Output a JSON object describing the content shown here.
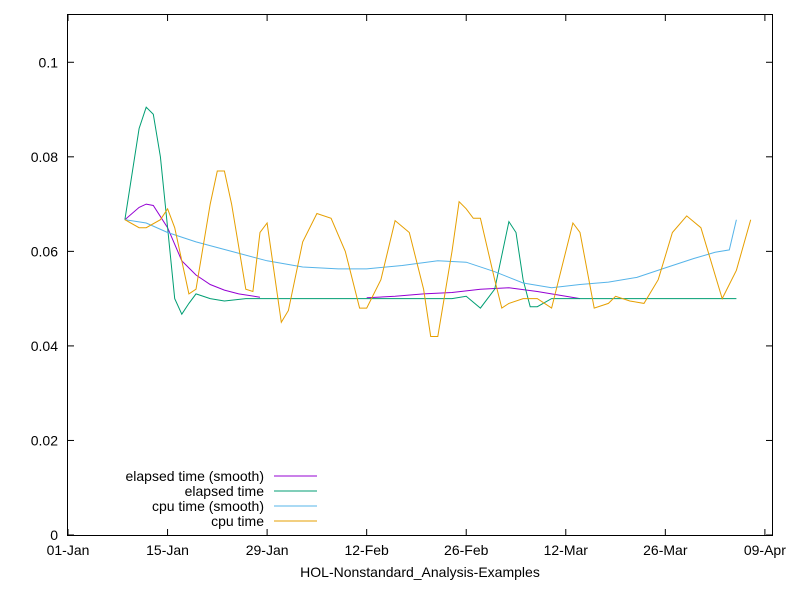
{
  "chart_data": {
    "type": "line",
    "title": "",
    "xlabel": "HOL-Nonstandard_Analysis-Examples",
    "ylabel": "",
    "x_range": [
      "2000-01-01",
      "2000-04-09"
    ],
    "ylim": [
      0,
      0.11
    ],
    "x_ticks": [
      "01-Jan",
      "15-Jan",
      "29-Jan",
      "12-Feb",
      "26-Feb",
      "12-Mar",
      "26-Mar",
      "09-Apr"
    ],
    "y_ticks": [
      "0",
      "0.02",
      "0.04",
      "0.06",
      "0.08",
      "0.1"
    ],
    "y_tick_values": [
      0,
      0.02,
      0.04,
      0.06,
      0.08,
      0.1
    ],
    "grid": false,
    "legend_position": "bottom-left",
    "series": [
      {
        "name": "elapsed time (smooth)",
        "color": "#9400d3",
        "points": [
          [
            "2000-01-09",
            0.0667
          ],
          [
            "2000-01-11",
            0.0693
          ],
          [
            "2000-01-12",
            0.07
          ],
          [
            "2000-01-13",
            0.0697
          ],
          [
            "2000-01-15",
            0.065
          ],
          [
            "2000-01-17",
            0.058
          ],
          [
            "2000-01-19",
            0.055
          ],
          [
            "2000-01-21",
            0.053
          ],
          [
            "2000-01-23",
            0.0518
          ],
          [
            "2000-01-25",
            0.051
          ],
          [
            "2000-01-28",
            0.0503
          ],
          null,
          [
            "2000-02-12",
            0.0502
          ],
          [
            "2000-02-16",
            0.0505
          ],
          [
            "2000-02-20",
            0.051
          ],
          [
            "2000-02-24",
            0.0513
          ],
          [
            "2000-02-28",
            0.052
          ],
          [
            "2000-03-03",
            0.0523
          ],
          [
            "2000-03-07",
            0.0515
          ],
          [
            "2000-03-11",
            0.0505
          ],
          [
            "2000-03-13",
            0.05
          ]
        ]
      },
      {
        "name": "elapsed time",
        "color": "#009e73",
        "points": [
          [
            "2000-01-09",
            0.0667
          ],
          [
            "2000-01-11",
            0.086
          ],
          [
            "2000-01-12",
            0.0905
          ],
          [
            "2000-01-13",
            0.089
          ],
          [
            "2000-01-14",
            0.08
          ],
          [
            "2000-01-15",
            0.065
          ],
          [
            "2000-01-16",
            0.05
          ],
          [
            "2000-01-17",
            0.0467
          ],
          [
            "2000-01-18",
            0.049
          ],
          [
            "2000-01-19",
            0.051
          ],
          [
            "2000-01-21",
            0.05
          ],
          [
            "2000-01-23",
            0.0495
          ],
          [
            "2000-01-26",
            0.05
          ],
          [
            "2000-02-12",
            0.05
          ],
          [
            "2000-02-24",
            0.05
          ],
          [
            "2000-02-26",
            0.0505
          ],
          [
            "2000-02-28",
            0.048
          ],
          [
            "2000-03-01",
            0.052
          ],
          [
            "2000-03-03",
            0.0663
          ],
          [
            "2000-03-04",
            0.064
          ],
          [
            "2000-03-05",
            0.054
          ],
          [
            "2000-03-06",
            0.0483
          ],
          [
            "2000-03-07",
            0.0483
          ],
          [
            "2000-03-09",
            0.05
          ],
          [
            "2000-04-04",
            0.05
          ]
        ]
      },
      {
        "name": "cpu time (smooth)",
        "color": "#56b4e9",
        "points": [
          [
            "2000-01-09",
            0.0667
          ],
          [
            "2000-01-12",
            0.066
          ],
          [
            "2000-01-15",
            0.064
          ],
          [
            "2000-01-19",
            0.062
          ],
          [
            "2000-01-24",
            0.06
          ],
          [
            "2000-01-29",
            0.058
          ],
          [
            "2000-02-03",
            0.0567
          ],
          [
            "2000-02-08",
            0.0563
          ],
          [
            "2000-02-12",
            0.0563
          ],
          [
            "2000-02-17",
            0.057
          ],
          [
            "2000-02-22",
            0.058
          ],
          [
            "2000-02-26",
            0.0577
          ],
          [
            "2000-03-01",
            0.0557
          ],
          [
            "2000-03-05",
            0.0533
          ],
          [
            "2000-03-09",
            0.0523
          ],
          [
            "2000-03-13",
            0.053
          ],
          [
            "2000-03-17",
            0.0535
          ],
          [
            "2000-03-21",
            0.0545
          ],
          [
            "2000-03-25",
            0.0565
          ],
          [
            "2000-03-29",
            0.0585
          ],
          [
            "2000-04-01",
            0.0598
          ],
          [
            "2000-04-03",
            0.0603
          ],
          [
            "2000-04-04",
            0.0667
          ]
        ]
      },
      {
        "name": "cpu time",
        "color": "#e69f00",
        "points": [
          [
            "2000-01-09",
            0.0667
          ],
          [
            "2000-01-11",
            0.065
          ],
          [
            "2000-01-12",
            0.065
          ],
          [
            "2000-01-14",
            0.0667
          ],
          [
            "2000-01-15",
            0.069
          ],
          [
            "2000-01-16",
            0.065
          ],
          [
            "2000-01-18",
            0.051
          ],
          [
            "2000-01-19",
            0.052
          ],
          [
            "2000-01-21",
            0.07
          ],
          [
            "2000-01-22",
            0.077
          ],
          [
            "2000-01-23",
            0.077
          ],
          [
            "2000-01-24",
            0.07
          ],
          [
            "2000-01-26",
            0.052
          ],
          [
            "2000-01-27",
            0.0515
          ],
          [
            "2000-01-28",
            0.064
          ],
          [
            "2000-01-29",
            0.066
          ],
          [
            "2000-01-31",
            0.045
          ],
          [
            "2000-02-01",
            0.0475
          ],
          [
            "2000-02-03",
            0.062
          ],
          [
            "2000-02-05",
            0.068
          ],
          [
            "2000-02-07",
            0.067
          ],
          [
            "2000-02-09",
            0.06
          ],
          [
            "2000-02-11",
            0.048
          ],
          [
            "2000-02-12",
            0.048
          ],
          [
            "2000-02-14",
            0.054
          ],
          [
            "2000-02-16",
            0.0665
          ],
          [
            "2000-02-18",
            0.064
          ],
          [
            "2000-02-20",
            0.052
          ],
          [
            "2000-02-21",
            0.042
          ],
          [
            "2000-02-22",
            0.042
          ],
          [
            "2000-02-24",
            0.06
          ],
          [
            "2000-02-25",
            0.0705
          ],
          [
            "2000-02-26",
            0.069
          ],
          [
            "2000-02-27",
            0.067
          ],
          [
            "2000-02-28",
            0.067
          ],
          [
            "2000-03-01",
            0.054
          ],
          [
            "2000-03-02",
            0.048
          ],
          [
            "2000-03-03",
            0.049
          ],
          [
            "2000-03-05",
            0.05
          ],
          [
            "2000-03-07",
            0.05
          ],
          [
            "2000-03-09",
            0.048
          ],
          [
            "2000-03-12",
            0.066
          ],
          [
            "2000-03-13",
            0.064
          ],
          [
            "2000-03-15",
            0.048
          ],
          [
            "2000-03-17",
            0.049
          ],
          [
            "2000-03-18",
            0.0505
          ],
          [
            "2000-03-20",
            0.0495
          ],
          [
            "2000-03-22",
            0.049
          ],
          [
            "2000-03-24",
            0.054
          ],
          [
            "2000-03-26",
            0.064
          ],
          [
            "2000-03-28",
            0.0675
          ],
          [
            "2000-03-30",
            0.065
          ],
          [
            "2000-04-02",
            0.05
          ],
          [
            "2000-04-04",
            0.056
          ],
          [
            "2000-04-06",
            0.0667
          ]
        ]
      }
    ]
  }
}
